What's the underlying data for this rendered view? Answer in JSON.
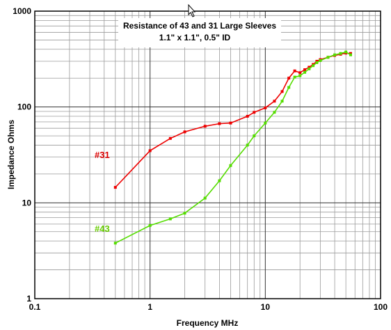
{
  "chart_data": {
    "type": "line",
    "title": "Resistance of 43 and 31 Large Sleeves",
    "subtitle": "1.1\" x 1.1\", 0.5\" ID",
    "xlabel": "Frequency  MHz",
    "ylabel": "Impedance  Ohms",
    "xscale": "log",
    "yscale": "log",
    "xlim": [
      0.1,
      100
    ],
    "ylim": [
      1,
      1000
    ],
    "x_ticks": [
      "0.1",
      "1",
      "10",
      "100"
    ],
    "y_ticks": [
      "1",
      "10",
      "100",
      "1000"
    ],
    "grid": true,
    "legend": "inline labels",
    "series": [
      {
        "name": "#31",
        "color": "#ee0000",
        "points": [
          [
            0.5,
            14.5
          ],
          [
            1,
            35
          ],
          [
            1.5,
            47
          ],
          [
            2,
            55
          ],
          [
            3,
            63
          ],
          [
            4,
            67
          ],
          [
            5,
            68
          ],
          [
            7,
            80
          ],
          [
            8,
            88
          ],
          [
            10,
            98
          ],
          [
            12,
            115
          ],
          [
            14,
            145
          ],
          [
            16,
            200
          ],
          [
            18,
            238
          ],
          [
            20,
            228
          ],
          [
            22,
            245
          ],
          [
            24,
            260
          ],
          [
            26,
            278
          ],
          [
            28,
            300
          ],
          [
            30,
            312
          ],
          [
            35,
            330
          ],
          [
            40,
            345
          ],
          [
            45,
            355
          ],
          [
            50,
            365
          ],
          [
            55,
            362
          ]
        ]
      },
      {
        "name": "#43",
        "color": "#55dd00",
        "points": [
          [
            0.5,
            3.8
          ],
          [
            1,
            5.8
          ],
          [
            1.5,
            6.8
          ],
          [
            2,
            7.8
          ],
          [
            3,
            11.2
          ],
          [
            4,
            17
          ],
          [
            5,
            24.5
          ],
          [
            7,
            40
          ],
          [
            8,
            50
          ],
          [
            10,
            68
          ],
          [
            12,
            88
          ],
          [
            14,
            115
          ],
          [
            16,
            160
          ],
          [
            18,
            205
          ],
          [
            20,
            212
          ],
          [
            22,
            230
          ],
          [
            24,
            250
          ],
          [
            26,
            270
          ],
          [
            28,
            290
          ],
          [
            30,
            305
          ],
          [
            35,
            330
          ],
          [
            40,
            350
          ],
          [
            45,
            362
          ],
          [
            50,
            375
          ],
          [
            55,
            350
          ]
        ]
      }
    ]
  }
}
